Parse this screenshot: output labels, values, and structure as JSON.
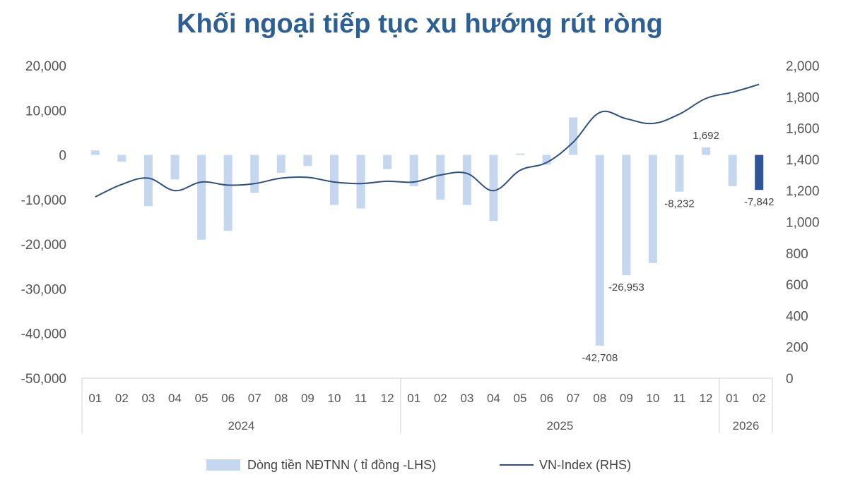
{
  "chart_data": {
    "type": "bar",
    "title": "Khối ngoại tiếp tục xu hướng rút ròng",
    "months": [
      "01",
      "02",
      "03",
      "04",
      "05",
      "06",
      "07",
      "08",
      "09",
      "10",
      "11",
      "12",
      "01",
      "02",
      "03",
      "04",
      "05",
      "06",
      "07",
      "08",
      "09",
      "10",
      "11",
      "12",
      "01",
      "02"
    ],
    "years": [
      {
        "label": "2024",
        "count": 12
      },
      {
        "label": "2025",
        "count": 12
      },
      {
        "label": "2026",
        "count": 2
      }
    ],
    "y_left": {
      "min": -50000,
      "max": 20000,
      "ticks": [
        20000,
        10000,
        0,
        -10000,
        -20000,
        -30000,
        -40000,
        -50000
      ],
      "tick_labels": [
        "20,000",
        "10,000",
        "0",
        "-10,000",
        "-20,000",
        "-30,000",
        "-40,000",
        "-50,000"
      ]
    },
    "y_right": {
      "min": 0,
      "max": 2000,
      "ticks": [
        2000,
        1800,
        1600,
        1400,
        1200,
        1000,
        800,
        600,
        400,
        200,
        0
      ],
      "tick_labels": [
        "2,000",
        "1,800",
        "1,600",
        "1,400",
        "1,200",
        "1,000",
        "800",
        "600",
        "400",
        "200",
        "0"
      ]
    },
    "series": [
      {
        "name": "Dòng tiền NĐTNN ( tỉ đồng -LHS)",
        "type": "bar",
        "axis": "left",
        "color": "#c5d7ee",
        "highlight_color": "#2f5597",
        "highlight_index": 25,
        "values": [
          1000,
          -1500,
          -11500,
          -5500,
          -19000,
          -17000,
          -8500,
          -4000,
          -2500,
          -11200,
          -12000,
          -3200,
          -7000,
          -10000,
          -11200,
          -14800,
          300,
          -2200,
          8400,
          -42708,
          -26953,
          -24200,
          -8232,
          1692,
          -7000,
          -7842
        ]
      },
      {
        "name": "VN-Index (RHS)",
        "type": "line",
        "axis": "right",
        "color": "#2e5080",
        "values": [
          1160,
          1240,
          1280,
          1200,
          1255,
          1235,
          1245,
          1280,
          1285,
          1255,
          1245,
          1260,
          1255,
          1300,
          1310,
          1200,
          1330,
          1380,
          1510,
          1700,
          1660,
          1630,
          1690,
          1790,
          1830,
          1880
        ]
      }
    ],
    "data_labels": [
      {
        "index": 19,
        "text": "-42,708"
      },
      {
        "index": 20,
        "text": "-26,953"
      },
      {
        "index": 22,
        "text": "-8,232"
      },
      {
        "index": 23,
        "text": "1,692"
      },
      {
        "index": 25,
        "text": "-7,842"
      }
    ],
    "legend": "bottom-center"
  }
}
